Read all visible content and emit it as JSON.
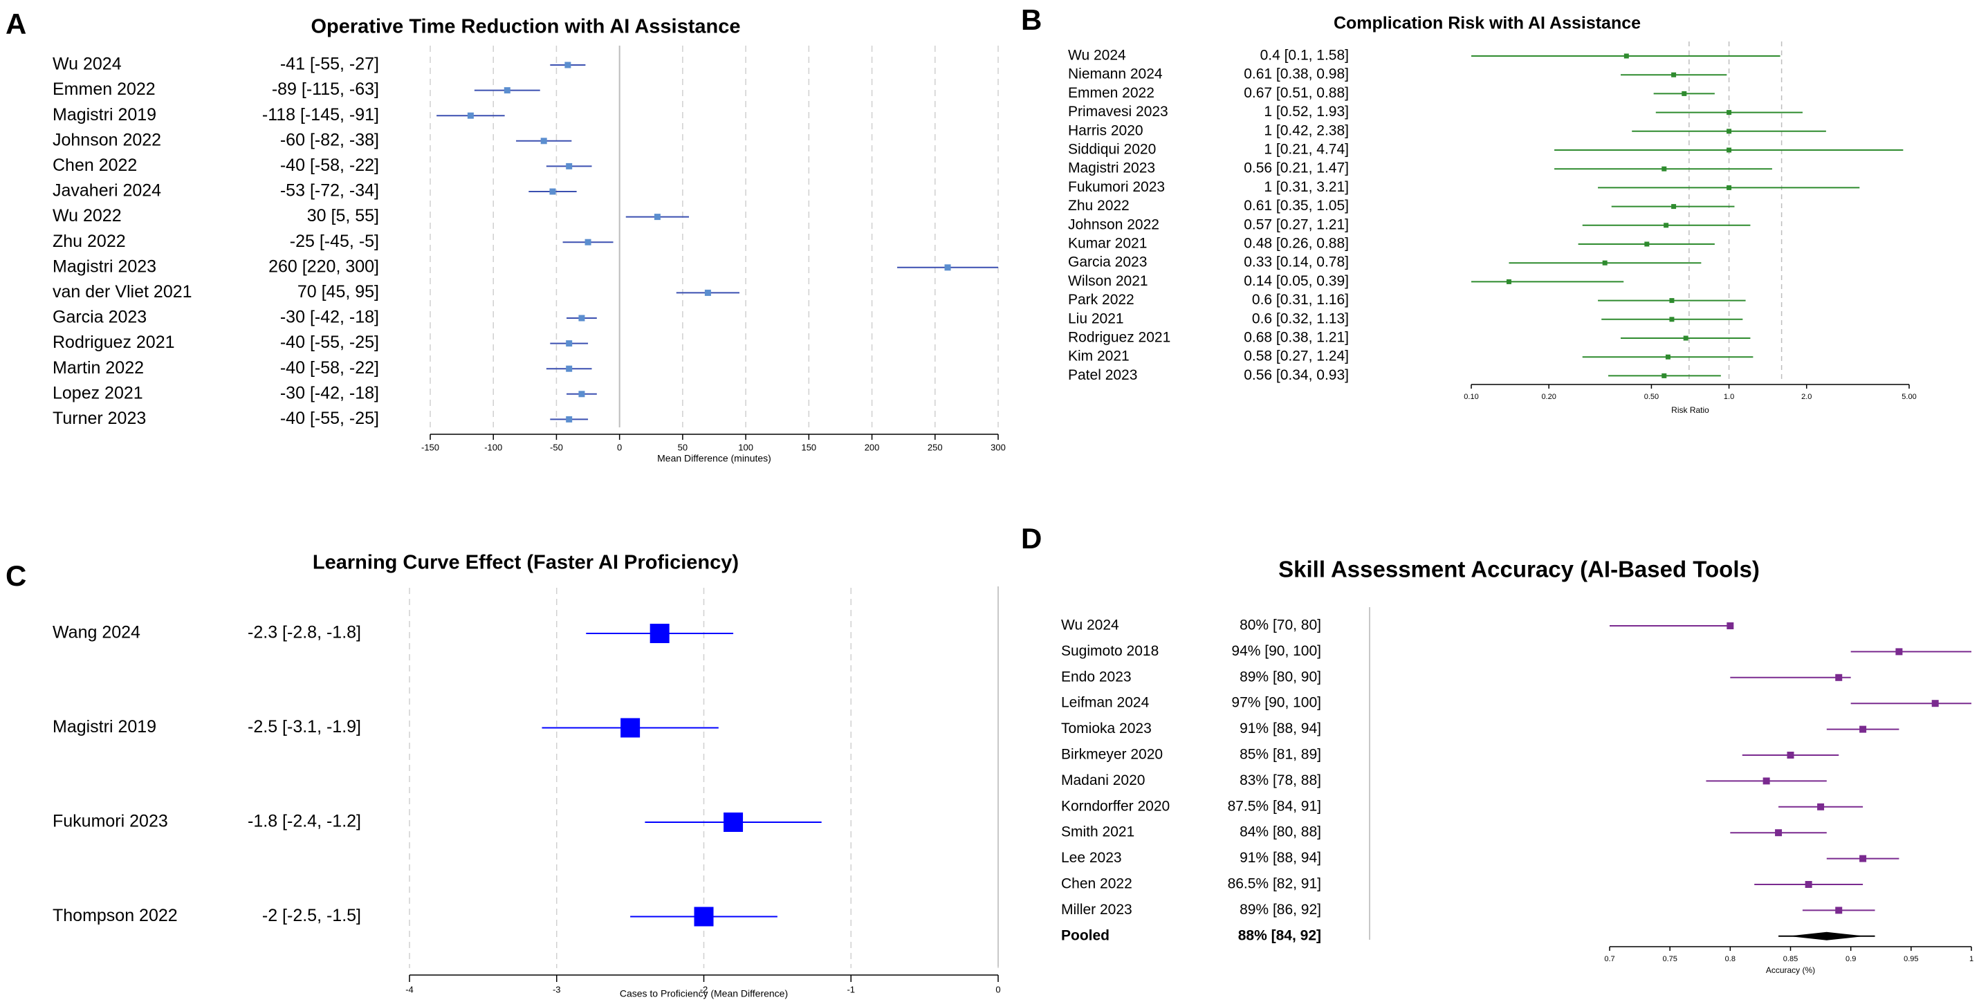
{
  "chart_data": [
    {
      "panel": "A",
      "type": "forest",
      "title": "Operative Time Reduction with AI Assistance",
      "xlabel": "Mean Difference (minutes)",
      "xlim": [
        -150,
        300
      ],
      "ticks": [
        -150,
        -100,
        -50,
        0,
        50,
        100,
        150,
        200,
        250,
        300
      ],
      "reference": 0,
      "color": "#3a4fb0",
      "point_color": "#5b8ecf",
      "studies": [
        {
          "name": "Wu 2024",
          "ci_text": "-41 [-55, -27]",
          "est": -41,
          "lo": -55,
          "hi": -27
        },
        {
          "name": "Emmen 2022",
          "ci_text": "-89 [-115, -63]",
          "est": -89,
          "lo": -115,
          "hi": -63
        },
        {
          "name": "Magistri 2019",
          "ci_text": "-118 [-145, -91]",
          "est": -118,
          "lo": -145,
          "hi": -91
        },
        {
          "name": "Johnson 2022",
          "ci_text": "-60 [-82, -38]",
          "est": -60,
          "lo": -82,
          "hi": -38
        },
        {
          "name": "Chen 2022",
          "ci_text": "-40 [-58, -22]",
          "est": -40,
          "lo": -58,
          "hi": -22
        },
        {
          "name": "Javaheri 2024",
          "ci_text": "-53 [-72, -34]",
          "est": -53,
          "lo": -72,
          "hi": -34
        },
        {
          "name": "Wu 2022",
          "ci_text": "30 [5, 55]",
          "est": 30,
          "lo": 5,
          "hi": 55
        },
        {
          "name": "Zhu 2022",
          "ci_text": "-25 [-45, -5]",
          "est": -25,
          "lo": -45,
          "hi": -5
        },
        {
          "name": "Magistri 2023",
          "ci_text": "260 [220, 300]",
          "est": 260,
          "lo": 220,
          "hi": 300
        },
        {
          "name": "van der Vliet 2021",
          "ci_text": "70 [45, 95]",
          "est": 70,
          "lo": 45,
          "hi": 95
        },
        {
          "name": "Garcia 2023",
          "ci_text": "-30 [-42, -18]",
          "est": -30,
          "lo": -42,
          "hi": -18
        },
        {
          "name": "Rodriguez 2021",
          "ci_text": "-40 [-55, -25]",
          "est": -40,
          "lo": -55,
          "hi": -25
        },
        {
          "name": "Martin 2022",
          "ci_text": "-40 [-58, -22]",
          "est": -40,
          "lo": -58,
          "hi": -22
        },
        {
          "name": "Lopez 2021",
          "ci_text": "-30 [-42, -18]",
          "est": -30,
          "lo": -42,
          "hi": -18
        },
        {
          "name": "Turner 2023",
          "ci_text": "-40 [-55, -25]",
          "est": -40,
          "lo": -55,
          "hi": -25
        }
      ]
    },
    {
      "panel": "B",
      "type": "forest",
      "scale": "log",
      "title": "Complication Risk with AI Assistance",
      "xlabel": "Risk Ratio",
      "xlim": [
        0.1,
        5.0
      ],
      "ticks": [
        0.1,
        0.2,
        0.5,
        1.0,
        2.0,
        5.0
      ],
      "tick_labels": [
        "0.10",
        "0.20",
        "0.50",
        "1.0",
        "2.0",
        "5.00"
      ],
      "grid_refs": [
        0.7,
        1.0,
        1.6
      ],
      "color": "#2e8b2e",
      "studies": [
        {
          "name": "Wu 2024",
          "ci_text": "0.4 [0.1, 1.58]",
          "est": 0.4,
          "lo": 0.1,
          "hi": 1.58
        },
        {
          "name": "Niemann 2024",
          "ci_text": "0.61 [0.38, 0.98]",
          "est": 0.61,
          "lo": 0.38,
          "hi": 0.98
        },
        {
          "name": "Emmen 2022",
          "ci_text": "0.67 [0.51, 0.88]",
          "est": 0.67,
          "lo": 0.51,
          "hi": 0.88
        },
        {
          "name": "Primavesi 2023",
          "ci_text": "1 [0.52, 1.93]",
          "est": 1,
          "lo": 0.52,
          "hi": 1.93
        },
        {
          "name": "Harris 2020",
          "ci_text": "1 [0.42, 2.38]",
          "est": 1,
          "lo": 0.42,
          "hi": 2.38
        },
        {
          "name": "Siddiqui 2020",
          "ci_text": "1 [0.21, 4.74]",
          "est": 1,
          "lo": 0.21,
          "hi": 4.74
        },
        {
          "name": "Magistri 2023",
          "ci_text": "0.56 [0.21, 1.47]",
          "est": 0.56,
          "lo": 0.21,
          "hi": 1.47
        },
        {
          "name": "Fukumori 2023",
          "ci_text": "1 [0.31, 3.21]",
          "est": 1,
          "lo": 0.31,
          "hi": 3.21
        },
        {
          "name": "Zhu 2022",
          "ci_text": "0.61 [0.35, 1.05]",
          "est": 0.61,
          "lo": 0.35,
          "hi": 1.05
        },
        {
          "name": "Johnson 2022",
          "ci_text": "0.57 [0.27, 1.21]",
          "est": 0.57,
          "lo": 0.27,
          "hi": 1.21
        },
        {
          "name": "Kumar 2021",
          "ci_text": "0.48 [0.26, 0.88]",
          "est": 0.48,
          "lo": 0.26,
          "hi": 0.88
        },
        {
          "name": "Garcia 2023",
          "ci_text": "0.33 [0.14, 0.78]",
          "est": 0.33,
          "lo": 0.14,
          "hi": 0.78
        },
        {
          "name": "Wilson 2021",
          "ci_text": "0.14 [0.05, 0.39]",
          "est": 0.14,
          "lo": 0.05,
          "hi": 0.39
        },
        {
          "name": "Park 2022",
          "ci_text": "0.6 [0.31, 1.16]",
          "est": 0.6,
          "lo": 0.31,
          "hi": 1.16
        },
        {
          "name": "Liu 2021",
          "ci_text": "0.6 [0.32, 1.13]",
          "est": 0.6,
          "lo": 0.32,
          "hi": 1.13
        },
        {
          "name": "Rodriguez 2021",
          "ci_text": "0.68 [0.38, 1.21]",
          "est": 0.68,
          "lo": 0.38,
          "hi": 1.21
        },
        {
          "name": "Kim 2021",
          "ci_text": "0.58 [0.27, 1.24]",
          "est": 0.58,
          "lo": 0.27,
          "hi": 1.24
        },
        {
          "name": "Patel 2023",
          "ci_text": "0.56 [0.34, 0.93]",
          "est": 0.56,
          "lo": 0.34,
          "hi": 0.93
        }
      ]
    },
    {
      "panel": "C",
      "type": "forest",
      "title": "Learning Curve Effect (Faster AI Proficiency)",
      "xlabel": "Cases to Proficiency (Mean Difference)",
      "xlim": [
        -4,
        0
      ],
      "ticks": [
        -4,
        -3,
        -2,
        -1,
        0
      ],
      "color": "#0000ff",
      "studies": [
        {
          "name": "Wang 2024",
          "ci_text": "-2.3 [-2.8, -1.8]",
          "est": -2.3,
          "lo": -2.8,
          "hi": -1.8
        },
        {
          "name": "Magistri 2019",
          "ci_text": "-2.5 [-3.1, -1.9]",
          "est": -2.5,
          "lo": -3.1,
          "hi": -1.9
        },
        {
          "name": "Fukumori 2023",
          "ci_text": "-1.8 [-2.4, -1.2]",
          "est": -1.8,
          "lo": -2.4,
          "hi": -1.2
        },
        {
          "name": "Thompson 2022",
          "ci_text": "-2 [-2.5, -1.5]",
          "est": -2,
          "lo": -2.5,
          "hi": -1.5
        }
      ]
    },
    {
      "panel": "D",
      "type": "forest",
      "title": "Skill Assessment Accuracy (AI-Based Tools)",
      "xlabel": "Accuracy (%)",
      "xlim": [
        0.7,
        1.0
      ],
      "ticks": [
        0.7,
        0.75,
        0.8,
        0.85,
        0.9,
        0.95,
        1.0
      ],
      "tick_labels": [
        "0.7",
        "0.75",
        "0.8",
        "0.85",
        "0.9",
        "0.95",
        "1"
      ],
      "color": "#7a2a8f",
      "studies": [
        {
          "name": "Wu 2024",
          "ci_text": "80% [70, 80]",
          "est": 0.8,
          "lo": 0.7,
          "hi": 0.8
        },
        {
          "name": "Sugimoto 2018",
          "ci_text": "94% [90, 100]",
          "est": 0.94,
          "lo": 0.9,
          "hi": 1.0
        },
        {
          "name": "Endo 2023",
          "ci_text": "89% [80, 90]",
          "est": 0.89,
          "lo": 0.8,
          "hi": 0.9
        },
        {
          "name": "Leifman 2024",
          "ci_text": "97% [90, 100]",
          "est": 0.97,
          "lo": 0.9,
          "hi": 1.0
        },
        {
          "name": "Tomioka 2023",
          "ci_text": "91% [88, 94]",
          "est": 0.91,
          "lo": 0.88,
          "hi": 0.94
        },
        {
          "name": "Birkmeyer 2020",
          "ci_text": "85% [81, 89]",
          "est": 0.85,
          "lo": 0.81,
          "hi": 0.89
        },
        {
          "name": "Madani 2020",
          "ci_text": "83% [78, 88]",
          "est": 0.83,
          "lo": 0.78,
          "hi": 0.88
        },
        {
          "name": "Korndorffer 2020",
          "ci_text": "87.5% [84, 91]",
          "est": 0.875,
          "lo": 0.84,
          "hi": 0.91
        },
        {
          "name": "Smith 2021",
          "ci_text": "84% [80, 88]",
          "est": 0.84,
          "lo": 0.8,
          "hi": 0.88
        },
        {
          "name": "Lee 2023",
          "ci_text": "91% [88, 94]",
          "est": 0.91,
          "lo": 0.88,
          "hi": 0.94
        },
        {
          "name": "Chen 2022",
          "ci_text": "86.5% [82, 91]",
          "est": 0.865,
          "lo": 0.82,
          "hi": 0.91
        },
        {
          "name": "Miller 2023",
          "ci_text": "89% [86, 92]",
          "est": 0.89,
          "lo": 0.86,
          "hi": 0.92
        }
      ],
      "pooled": {
        "name": "Pooled",
        "ci_text": "88% [84, 92]",
        "est": 0.88,
        "lo": 0.84,
        "hi": 0.92
      }
    }
  ]
}
